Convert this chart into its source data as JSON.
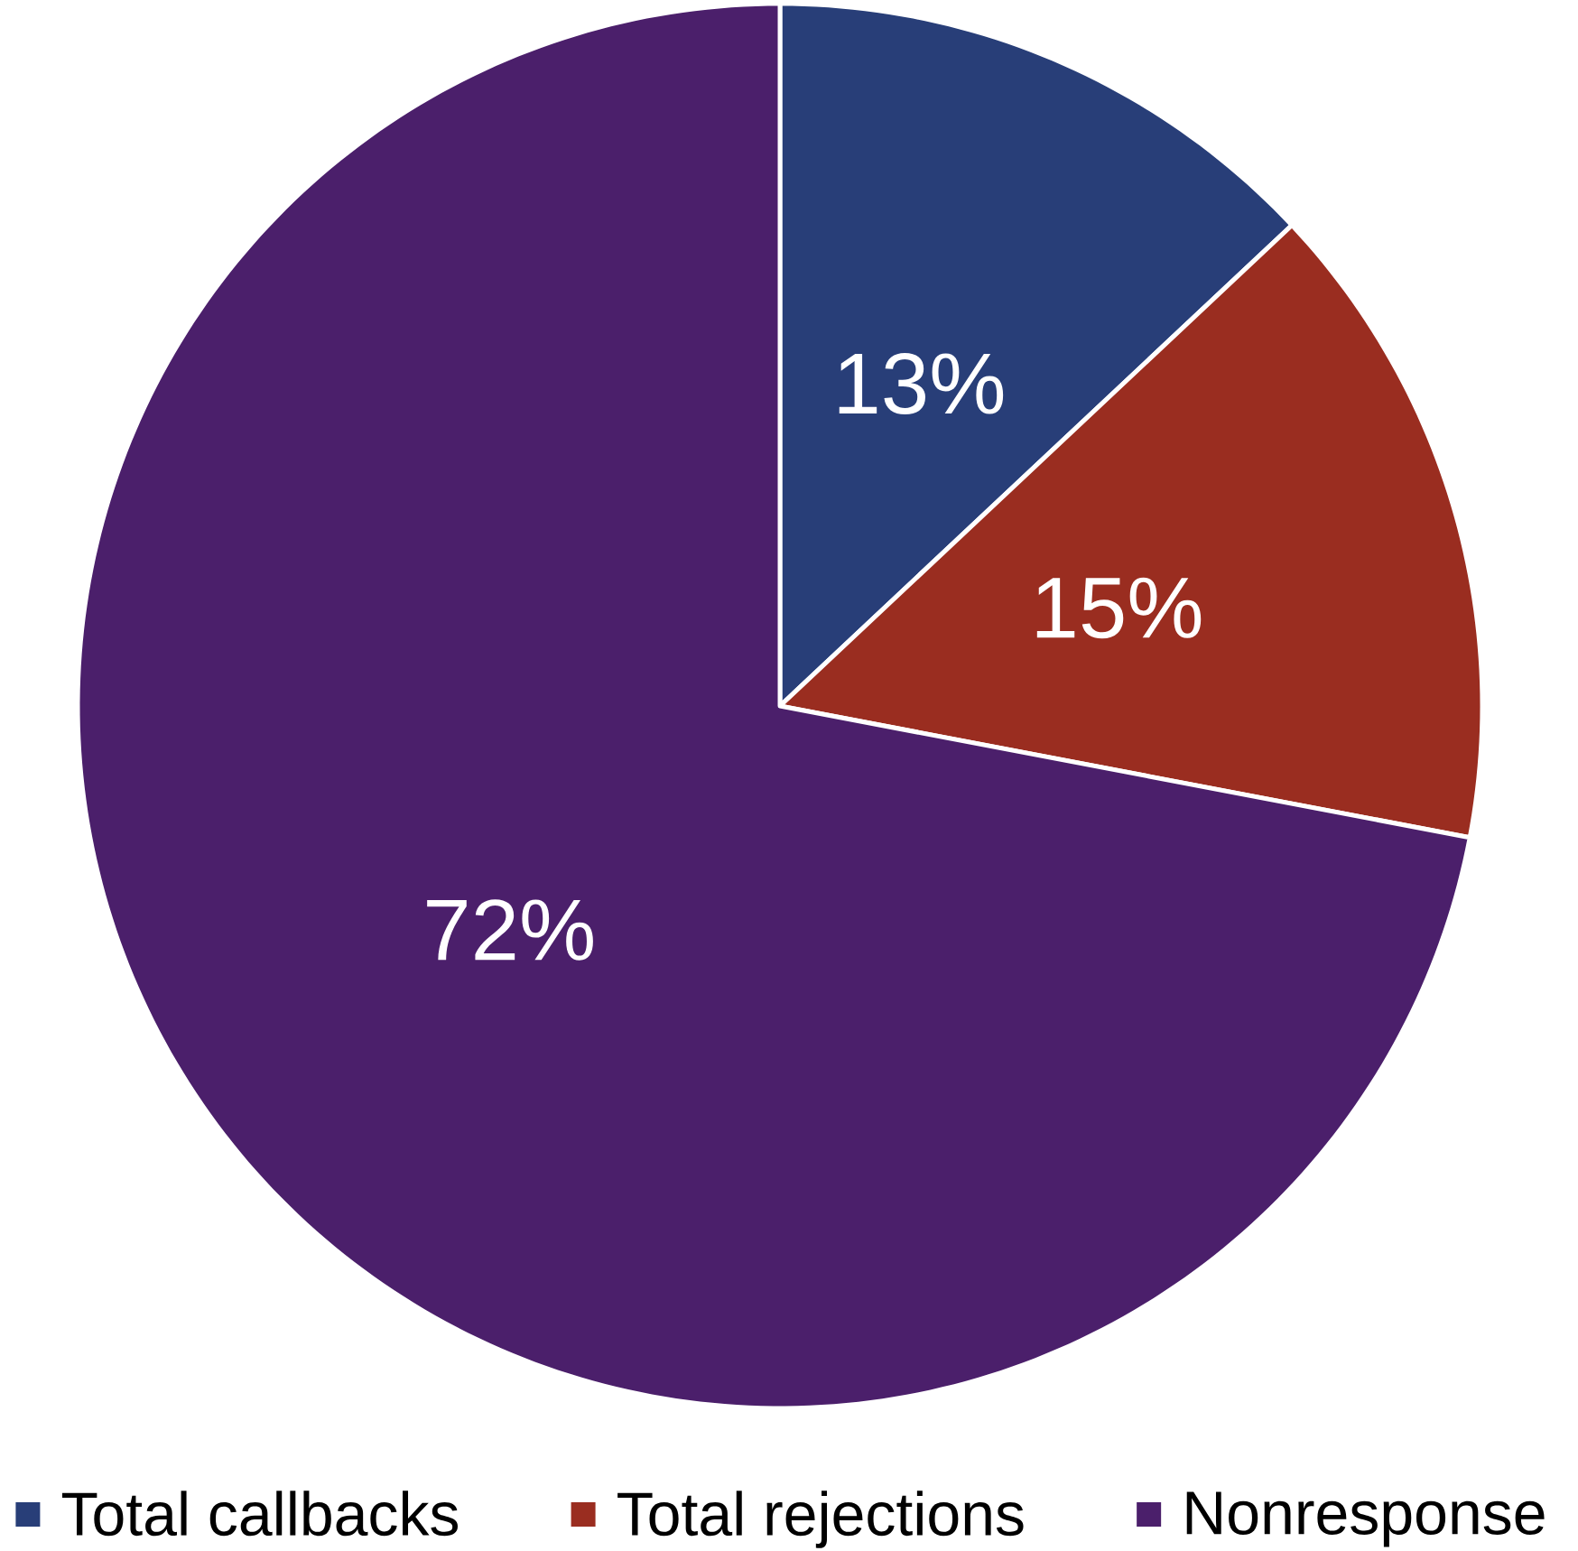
{
  "chart_data": {
    "type": "pie",
    "categories": [
      "Total callbacks",
      "Total rejections",
      "Nonresponse"
    ],
    "values": [
      13,
      15,
      72
    ],
    "colors": [
      "#283e78",
      "#9a2d20",
      "#4b1f6b"
    ],
    "value_labels": [
      "13%",
      "15%",
      "72%"
    ],
    "legend": "bottom"
  }
}
